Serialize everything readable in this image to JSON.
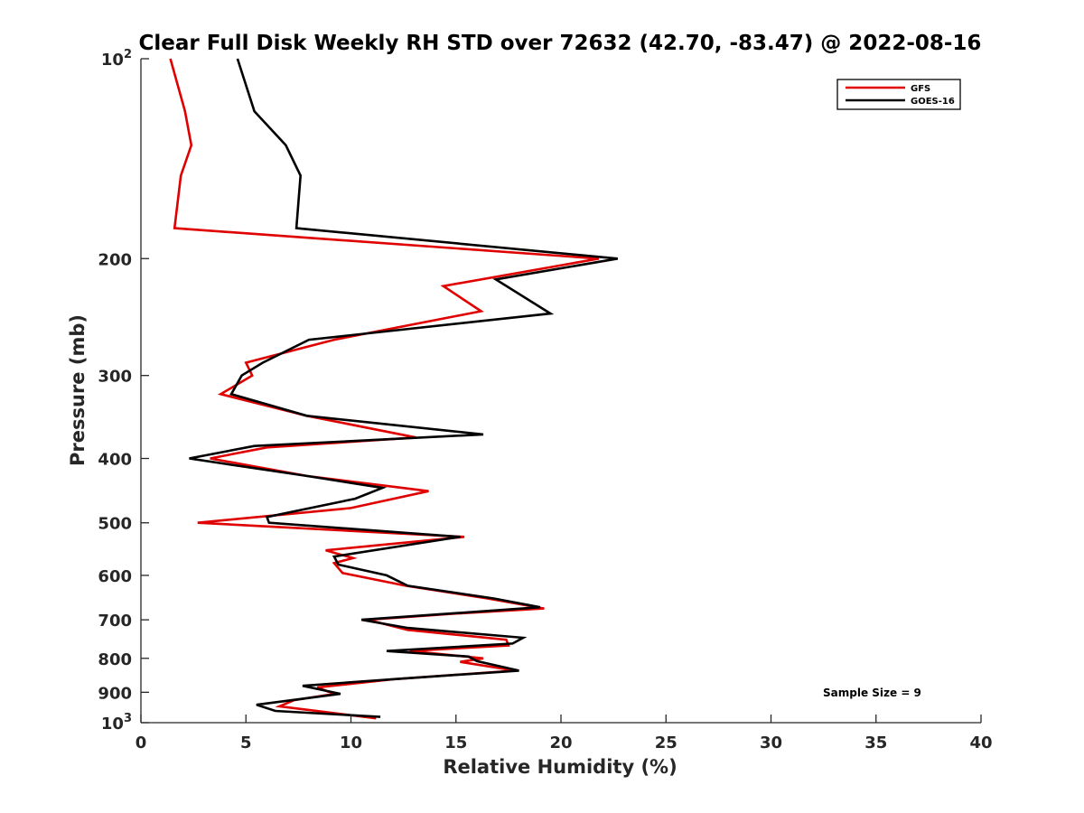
{
  "chart_data": {
    "type": "line",
    "title": "Clear Full Disk Weekly RH STD over 72632 (42.70, -83.47) @ 2022-08-16",
    "xlabel": "Relative Humidity (%)",
    "ylabel": "Pressure (mb)",
    "xlim": [
      0,
      40
    ],
    "ylim": [
      100,
      1000
    ],
    "y_scale": "log",
    "y_reversed": true,
    "grid": false,
    "legend_position": "top-right",
    "x_ticks": [
      0,
      5,
      10,
      15,
      20,
      25,
      30,
      35,
      40
    ],
    "x_tick_labels": [
      "0",
      "5",
      "10",
      "15",
      "20",
      "25",
      "30",
      "35",
      "40"
    ],
    "y_ticks": [
      100,
      200,
      300,
      400,
      500,
      600,
      700,
      800,
      900,
      1000
    ],
    "y_tick_labels": [
      {
        "base": "10",
        "exp": "2"
      },
      {
        "base": "200",
        "exp": ""
      },
      {
        "base": "300",
        "exp": ""
      },
      {
        "base": "400",
        "exp": ""
      },
      {
        "base": "500",
        "exp": ""
      },
      {
        "base": "600",
        "exp": ""
      },
      {
        "base": "700",
        "exp": ""
      },
      {
        "base": "800",
        "exp": ""
      },
      {
        "base": "900",
        "exp": ""
      },
      {
        "base": "10",
        "exp": "3"
      }
    ],
    "annotation": "Sample Size = 9",
    "series": [
      {
        "name": "GFS",
        "color": "#e00000",
        "points": [
          [
            1.4,
            100
          ],
          [
            2.1,
            120
          ],
          [
            2.4,
            135
          ],
          [
            1.9,
            150
          ],
          [
            1.6,
            180
          ],
          [
            21.8,
            200
          ],
          [
            14.4,
            220
          ],
          [
            16.2,
            240
          ],
          [
            9.2,
            265
          ],
          [
            5.0,
            287
          ],
          [
            5.3,
            300
          ],
          [
            3.8,
            320
          ],
          [
            7.9,
            345
          ],
          [
            13.1,
            372
          ],
          [
            6.0,
            385
          ],
          [
            3.3,
            400
          ],
          [
            7.9,
            425
          ],
          [
            13.7,
            448
          ],
          [
            10.0,
            475
          ],
          [
            2.7,
            500
          ],
          [
            15.4,
            525
          ],
          [
            8.8,
            550
          ],
          [
            10.1,
            565
          ],
          [
            9.2,
            575
          ],
          [
            9.6,
            595
          ],
          [
            12.6,
            622
          ],
          [
            16.5,
            650
          ],
          [
            19.2,
            673
          ],
          [
            15.0,
            685
          ],
          [
            10.8,
            700
          ],
          [
            12.7,
            725
          ],
          [
            17.4,
            750
          ],
          [
            17.5,
            765
          ],
          [
            12.8,
            780
          ],
          [
            16.3,
            800
          ],
          [
            15.2,
            810
          ],
          [
            17.8,
            835
          ],
          [
            12.0,
            860
          ],
          [
            8.4,
            885
          ],
          [
            9.2,
            905
          ],
          [
            7.3,
            925
          ],
          [
            6.6,
            945
          ],
          [
            11.2,
            985
          ]
        ]
      },
      {
        "name": "GOES-16",
        "color": "#000000",
        "points": [
          [
            4.6,
            100
          ],
          [
            5.4,
            120
          ],
          [
            6.9,
            135
          ],
          [
            7.6,
            150
          ],
          [
            7.4,
            180
          ],
          [
            22.7,
            200
          ],
          [
            16.9,
            215
          ],
          [
            19.5,
            242
          ],
          [
            8.0,
            265
          ],
          [
            5.8,
            287
          ],
          [
            4.8,
            300
          ],
          [
            4.3,
            320
          ],
          [
            7.9,
            345
          ],
          [
            16.3,
            368
          ],
          [
            5.4,
            383
          ],
          [
            2.3,
            400
          ],
          [
            7.9,
            425
          ],
          [
            11.5,
            443
          ],
          [
            10.2,
            460
          ],
          [
            6.0,
            490
          ],
          [
            6.1,
            500
          ],
          [
            15.2,
            525
          ],
          [
            9.2,
            562
          ],
          [
            9.4,
            578
          ],
          [
            11.7,
            600
          ],
          [
            12.7,
            622
          ],
          [
            16.8,
            650
          ],
          [
            19.0,
            670
          ],
          [
            10.5,
            700
          ],
          [
            12.7,
            720
          ],
          [
            18.2,
            745
          ],
          [
            17.7,
            760
          ],
          [
            11.7,
            780
          ],
          [
            15.6,
            795
          ],
          [
            16.0,
            808
          ],
          [
            18.0,
            835
          ],
          [
            12.0,
            860
          ],
          [
            7.7,
            880
          ],
          [
            9.5,
            905
          ],
          [
            5.5,
            940
          ],
          [
            6.4,
            960
          ],
          [
            11.4,
            980
          ]
        ]
      }
    ]
  }
}
